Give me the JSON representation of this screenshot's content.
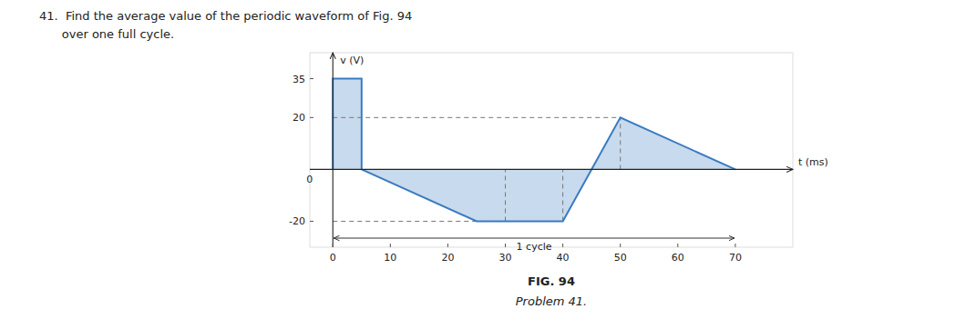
{
  "chart_data": {
    "type": "area",
    "title": "41.  Find the average value of the periodic waveform of Fig. 94",
    "subtitle": "      over one full cycle.",
    "x_label": "t (ms)",
    "y_label": "v (V)",
    "x": [
      0,
      0,
      5,
      5,
      25,
      40,
      50,
      70,
      70
    ],
    "values": [
      0,
      35,
      35,
      0,
      -20,
      -20,
      20,
      0,
      0
    ],
    "color": "#3a7bbf",
    "xlim": [
      -4,
      80
    ],
    "ylim": [
      -30,
      45
    ],
    "xticks": [
      0,
      10,
      20,
      30,
      40,
      50,
      60,
      70
    ],
    "yticks": [
      -20,
      20,
      35
    ],
    "grid": false,
    "guides": [
      {
        "x": [
          0,
          50
        ],
        "y": [
          20,
          20
        ]
      },
      {
        "x": [
          0,
          40
        ],
        "y": [
          -20,
          -20
        ]
      },
      {
        "x": [
          30,
          30
        ],
        "y": [
          -20,
          0
        ]
      },
      {
        "x": [
          40,
          40
        ],
        "y": [
          -20,
          0
        ]
      },
      {
        "x": [
          50,
          50
        ],
        "y": [
          0,
          20
        ]
      }
    ],
    "annotations": [
      {
        "text": "1 cycle",
        "x": [
          0,
          70
        ],
        "y": -26.5
      },
      {
        "text": "0",
        "x": -3.5,
        "y": -1.5
      }
    ],
    "figure_label": "FIG. 94",
    "caption": "Problem 41."
  }
}
